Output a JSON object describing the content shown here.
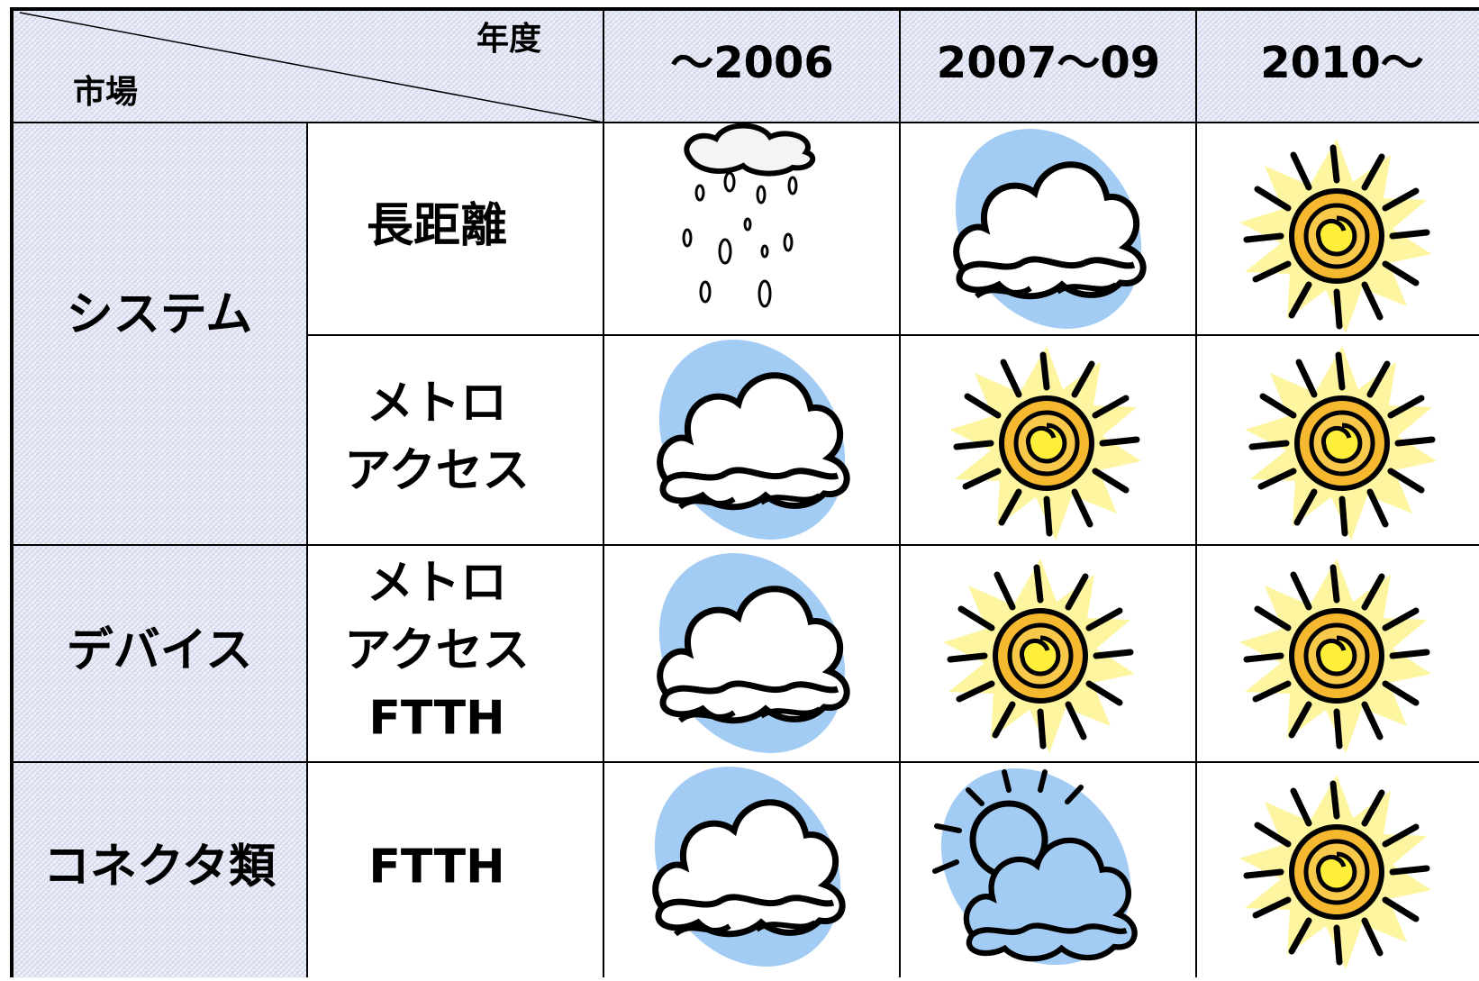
{
  "header": {
    "corner_top": "年度",
    "corner_bottom": "市場",
    "columns": [
      "～2006",
      "2007～09",
      "2010～"
    ]
  },
  "rows": [
    {
      "market": "システム",
      "segments": [
        [
          "長距離"
        ],
        [
          "メトロ",
          "アクセス"
        ]
      ]
    },
    {
      "market": "デバイス",
      "segments": [
        [
          "メトロ",
          "アクセス",
          "FTTH"
        ]
      ]
    },
    {
      "market": "コネクタ類",
      "segments": [
        [
          "FTTH"
        ]
      ]
    }
  ]
}
